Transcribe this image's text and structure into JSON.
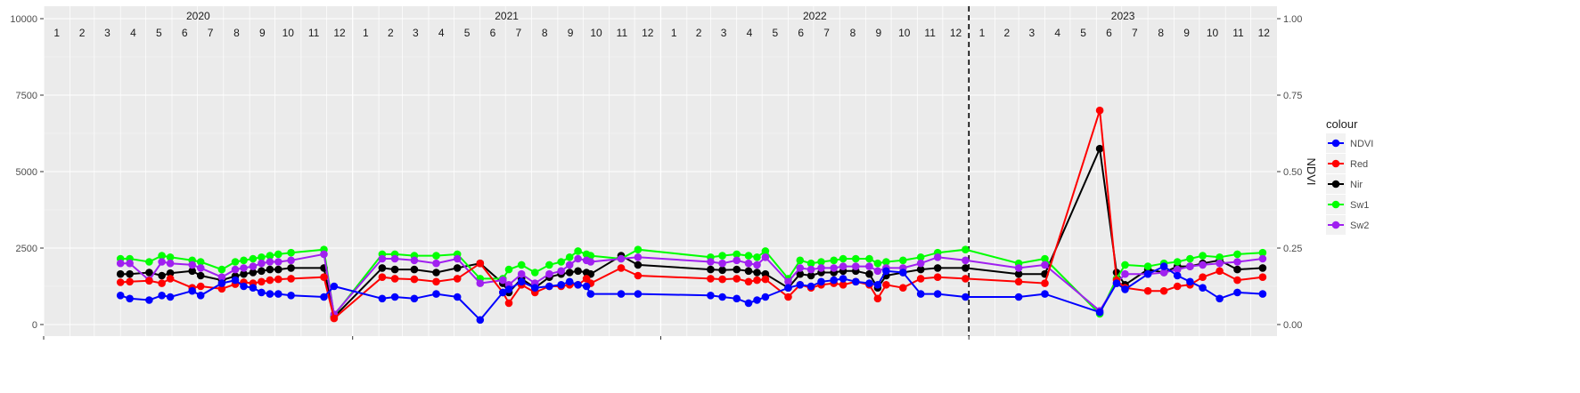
{
  "chart_data": {
    "type": "line",
    "title": "",
    "xlabel": "",
    "ylabel": "",
    "y2label": "NDVI",
    "ylim": [
      0,
      10000
    ],
    "y2lim": [
      0,
      1
    ],
    "yticks": [
      "0",
      "2500",
      "5000",
      "7500",
      "10000"
    ],
    "y2ticks": [
      "0.00",
      "0.25",
      "0.50",
      "0.75",
      "1.00"
    ],
    "years": [
      "2020",
      "2021",
      "2022",
      "2023"
    ],
    "months": [
      "1",
      "2",
      "3",
      "4",
      "5",
      "6",
      "7",
      "8",
      "9",
      "10",
      "11",
      "12"
    ],
    "vline_date": "2023-01-01",
    "grid": true,
    "legend": {
      "position": "right",
      "title": "colour",
      "entries": [
        {
          "name": "NDVI",
          "color": "#0000ff"
        },
        {
          "name": "Red",
          "color": "#ff0000"
        },
        {
          "name": "Nir",
          "color": "#000000"
        },
        {
          "name": "Sw1",
          "color": "#00ff00"
        },
        {
          "name": "Sw2",
          "color": "#a020f0"
        }
      ]
    },
    "dates": [
      "2020-04-01",
      "2020-04-12",
      "2020-05-05",
      "2020-05-20",
      "2020-05-30",
      "2020-06-25",
      "2020-07-05",
      "2020-07-30",
      "2020-08-15",
      "2020-08-25",
      "2020-09-05",
      "2020-09-15",
      "2020-09-25",
      "2020-10-05",
      "2020-10-20",
      "2020-11-28",
      "2020-12-10",
      "2021-02-05",
      "2021-02-20",
      "2021-03-15",
      "2021-04-10",
      "2021-05-05",
      "2021-06-01",
      "2021-06-28",
      "2021-07-05",
      "2021-07-20",
      "2021-08-05",
      "2021-08-22",
      "2021-09-05",
      "2021-09-15",
      "2021-09-25",
      "2021-10-05",
      "2021-10-10",
      "2021-11-15",
      "2021-12-05",
      "2022-03-01",
      "2022-03-15",
      "2022-04-01",
      "2022-04-15",
      "2022-04-25",
      "2022-05-05",
      "2022-06-01",
      "2022-06-15",
      "2022-06-28",
      "2022-07-10",
      "2022-07-25",
      "2022-08-05",
      "2022-08-20",
      "2022-09-05",
      "2022-09-15",
      "2022-09-25",
      "2022-10-15",
      "2022-11-05",
      "2022-11-25",
      "2022-12-28",
      "2023-03-01",
      "2023-04-01",
      "2023-06-05",
      "2023-06-25",
      "2023-07-05",
      "2023-08-01",
      "2023-08-20",
      "2023-09-05",
      "2023-09-20",
      "2023-10-05",
      "2023-10-25",
      "2023-11-15",
      "2023-12-15"
    ],
    "series": [
      {
        "name": "NDVI",
        "axis": "right",
        "color": "#0000ff",
        "values": [
          0.095,
          0.085,
          0.08,
          0.095,
          0.09,
          0.11,
          0.095,
          0.135,
          0.145,
          0.125,
          0.12,
          0.105,
          0.1,
          0.1,
          0.095,
          0.09,
          0.125,
          0.085,
          0.09,
          0.085,
          0.1,
          0.09,
          0.015,
          0.105,
          0.115,
          0.14,
          0.12,
          0.125,
          0.13,
          0.14,
          0.13,
          0.125,
          0.1,
          0.1,
          0.1,
          0.095,
          0.09,
          0.085,
          0.07,
          0.08,
          0.09,
          0.12,
          0.13,
          0.125,
          0.14,
          0.145,
          0.15,
          0.14,
          0.135,
          0.13,
          0.175,
          0.17,
          0.1,
          0.1,
          0.09,
          0.09,
          0.1,
          0.04,
          0.135,
          0.115,
          0.165,
          0.19,
          0.16,
          0.14,
          0.12,
          0.085,
          0.105,
          0.1
        ]
      },
      {
        "name": "Red",
        "color": "#ff0000",
        "values": [
          1380,
          1400,
          1430,
          1350,
          1500,
          1200,
          1250,
          1170,
          1320,
          1380,
          1350,
          1400,
          1450,
          1480,
          1500,
          1550,
          200,
          1550,
          1500,
          1480,
          1400,
          1500,
          2000,
          1050,
          700,
          1300,
          1050,
          1250,
          1250,
          1300,
          1300,
          1500,
          1350,
          1850,
          1600,
          1500,
          1480,
          1500,
          1400,
          1450,
          1480,
          900,
          1300,
          1200,
          1300,
          1350,
          1300,
          1400,
          1300,
          850,
          1300,
          1200,
          1500,
          1550,
          1500,
          1400,
          1350,
          7000,
          1450,
          1200,
          1100,
          1100,
          1250,
          1300,
          1550,
          1750,
          1450,
          1550
        ]
      },
      {
        "name": "Nir",
        "color": "#000000",
        "values": [
          1650,
          1650,
          1700,
          1600,
          1680,
          1750,
          1600,
          1450,
          1580,
          1650,
          1700,
          1750,
          1800,
          1800,
          1850,
          1850,
          250,
          1850,
          1800,
          1800,
          1700,
          1850,
          2000,
          1350,
          1050,
          1500,
          1200,
          1550,
          1650,
          1700,
          1750,
          1700,
          1650,
          2250,
          1950,
          1800,
          1780,
          1800,
          1750,
          1700,
          1650,
          1200,
          1650,
          1600,
          1700,
          1700,
          1750,
          1750,
          1650,
          1200,
          1600,
          1700,
          1800,
          1850,
          1850,
          1650,
          1650,
          5750,
          1700,
          1300,
          1800,
          1700,
          1900,
          1900,
          2000,
          2100,
          1800,
          1850
        ]
      },
      {
        "name": "Sw1",
        "color": "#00ff00",
        "values": [
          2150,
          2150,
          2050,
          2250,
          2200,
          2100,
          2050,
          1800,
          2050,
          2100,
          2150,
          2200,
          2250,
          2300,
          2350,
          2450,
          300,
          2300,
          2300,
          2250,
          2250,
          2300,
          1500,
          1500,
          1800,
          1950,
          1700,
          1950,
          2050,
          2200,
          2400,
          2300,
          2250,
          2150,
          2450,
          2200,
          2250,
          2300,
          2250,
          2200,
          2400,
          1500,
          2100,
          2000,
          2050,
          2100,
          2150,
          2150,
          2150,
          2000,
          2050,
          2100,
          2200,
          2350,
          2450,
          2000,
          2150,
          350,
          1500,
          1950,
          1900,
          2000,
          2050,
          2150,
          2250,
          2200,
          2300,
          2350
        ]
      },
      {
        "name": "Sw2",
        "color": "#a020f0",
        "values": [
          2000,
          2000,
          1450,
          2050,
          2000,
          1950,
          1850,
          1550,
          1800,
          1850,
          1900,
          2000,
          2050,
          2050,
          2100,
          2300,
          330,
          2150,
          2150,
          2100,
          2000,
          2150,
          1350,
          1450,
          1300,
          1650,
          1350,
          1650,
          1750,
          1950,
          2150,
          2100,
          2050,
          2150,
          2200,
          2050,
          2000,
          2100,
          2000,
          1950,
          2200,
          1400,
          1850,
          1800,
          1850,
          1850,
          1900,
          1900,
          1900,
          1750,
          1850,
          1850,
          2000,
          2200,
          2100,
          1850,
          1950,
          450,
          1350,
          1650,
          1650,
          1700,
          1800,
          1900,
          1950,
          2000,
          2050,
          2150
        ]
      }
    ]
  }
}
